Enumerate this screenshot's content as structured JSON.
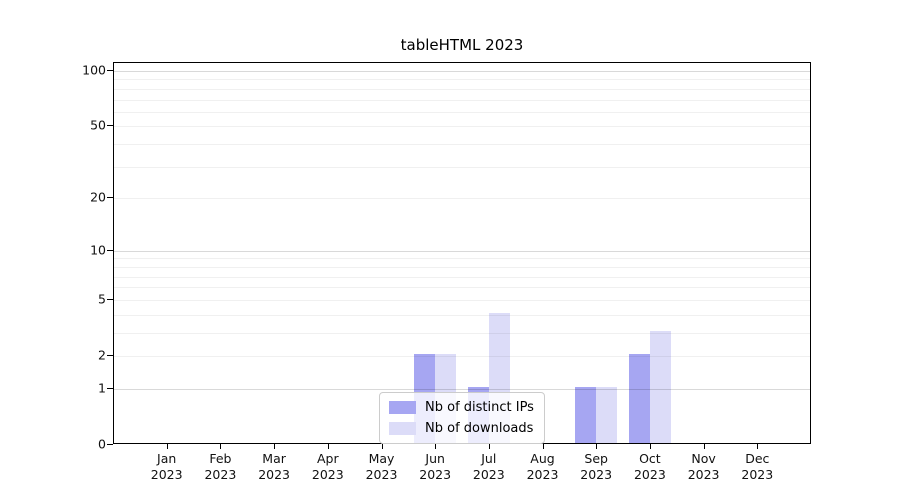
{
  "chart_data": {
    "type": "bar",
    "title": "tableHTML 2023",
    "categories": [
      {
        "month": "Jan",
        "year": "2023"
      },
      {
        "month": "Feb",
        "year": "2023"
      },
      {
        "month": "Mar",
        "year": "2023"
      },
      {
        "month": "Apr",
        "year": "2023"
      },
      {
        "month": "May",
        "year": "2023"
      },
      {
        "month": "Jun",
        "year": "2023"
      },
      {
        "month": "Jul",
        "year": "2023"
      },
      {
        "month": "Aug",
        "year": "2023"
      },
      {
        "month": "Sep",
        "year": "2023"
      },
      {
        "month": "Oct",
        "year": "2023"
      },
      {
        "month": "Nov",
        "year": "2023"
      },
      {
        "month": "Dec",
        "year": "2023"
      }
    ],
    "series": [
      {
        "name": "Nb of distinct IPs",
        "color": "#a6a6f2",
        "values": [
          0,
          0,
          0,
          0,
          0,
          2,
          1,
          0,
          1,
          2,
          0,
          0
        ]
      },
      {
        "name": "Nb of downloads",
        "color": "#dcdcf8",
        "values": [
          0,
          0,
          0,
          0,
          0,
          2,
          4,
          0,
          1,
          3,
          0,
          0
        ]
      }
    ],
    "y_axis": {
      "scale": "log1p",
      "ylim": [
        0,
        110
      ],
      "tick_labels": [
        0,
        1,
        2,
        5,
        10,
        20,
        50,
        100
      ],
      "grid_major_values": [
        1,
        10,
        100
      ],
      "grid_minor_values": [
        2,
        3,
        4,
        5,
        6,
        7,
        8,
        9,
        20,
        30,
        40,
        50,
        60,
        70,
        80,
        90
      ]
    },
    "legend": {
      "position": "lower center"
    },
    "colors": {
      "spine": "#000000",
      "background": "#ffffff"
    }
  }
}
